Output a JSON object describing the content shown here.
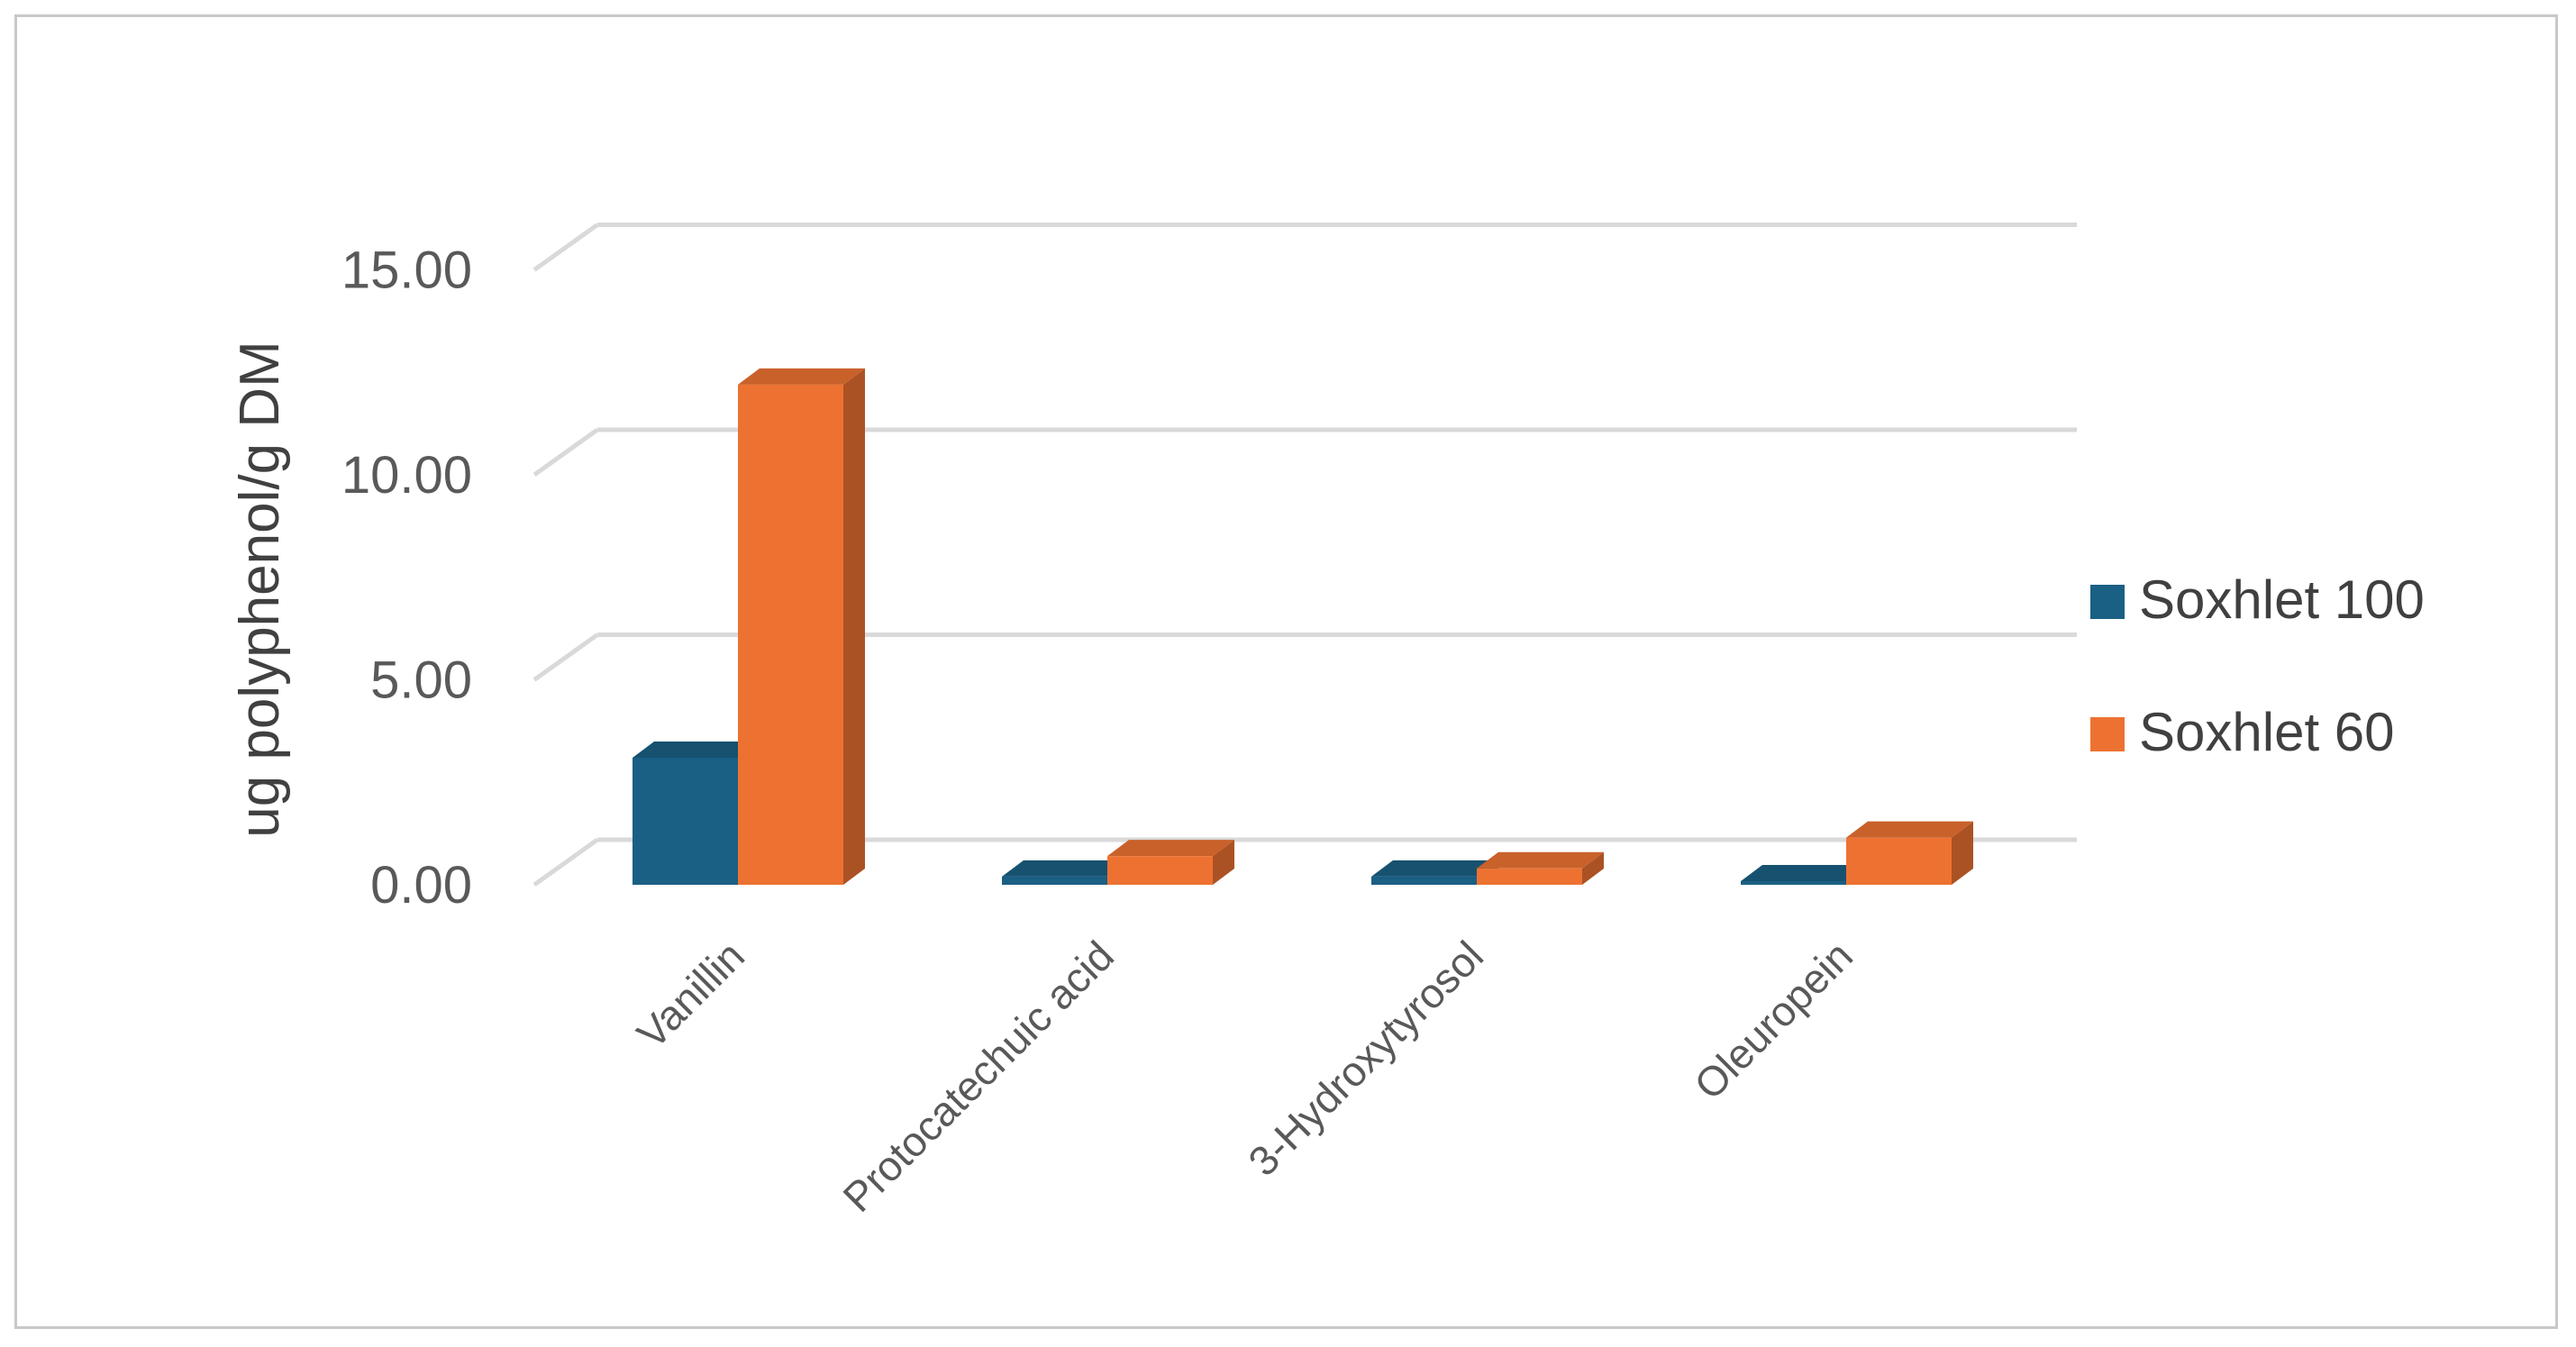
{
  "chart_data": {
    "type": "bar",
    "style": "3d-clustered-column",
    "categories": [
      "Vanillin",
      "Protocatechuic acid",
      "3-Hydroxytyrosol",
      "Oleuropein"
    ],
    "series": [
      {
        "name": "Soxhlet 100",
        "values": [
          3.1,
          0.2,
          0.2,
          0.05
        ],
        "color": "#1a5f84"
      },
      {
        "name": "Soxhlet 60",
        "values": [
          12.2,
          0.7,
          0.4,
          1.15
        ],
        "color": "#ed7232"
      }
    ],
    "title": "",
    "xlabel": "",
    "ylabel": "ug polyphenol/g DM",
    "ylim": [
      0,
      15
    ],
    "yticks": [
      "0.00",
      "5.00",
      "10.00",
      "15.00"
    ],
    "grid": true,
    "legend_position": "right"
  }
}
